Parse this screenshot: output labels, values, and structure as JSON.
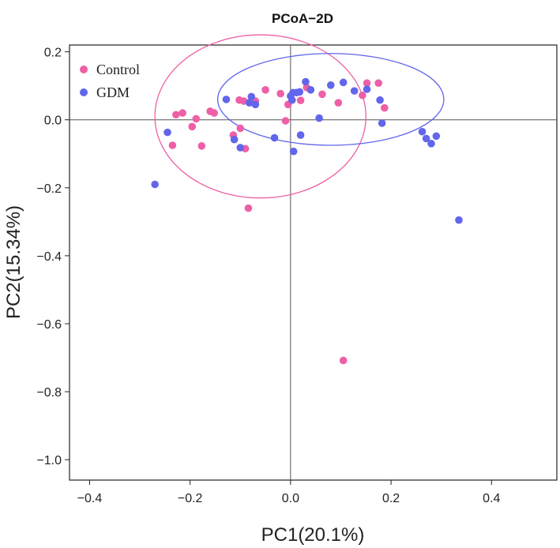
{
  "chart_data": {
    "type": "scatter",
    "title": "PCoA−2D",
    "xlabel": "PC1(20.1%)",
    "ylabel": "PC2(15.34%)",
    "xlim": [
      -0.44,
      0.53
    ],
    "ylim": [
      -1.06,
      0.22
    ],
    "xticks": [
      -0.4,
      -0.2,
      0.0,
      0.2,
      0.4
    ],
    "xtick_labels": [
      "−0.4",
      "−0.2",
      "0.0",
      "0.2",
      "0.4"
    ],
    "yticks": [
      0.2,
      0.0,
      -0.2,
      -0.4,
      -0.6,
      -0.8,
      -1.0
    ],
    "ytick_labels": [
      "0.2",
      "0.0",
      "−0.2",
      "−0.4",
      "−0.6",
      "−0.8",
      "−1.0"
    ],
    "legend_position": "top-left",
    "reference_lines": {
      "x": 0,
      "y": 0
    },
    "series": [
      {
        "name": "Control",
        "color": "#EE5FA7",
        "ellipse": {
          "cx": -0.06,
          "cy": 0.01,
          "rx": 0.21,
          "ry": 0.24
        },
        "points": [
          [
            -0.235,
            -0.075
          ],
          [
            -0.228,
            0.015
          ],
          [
            -0.215,
            0.02
          ],
          [
            -0.196,
            -0.02
          ],
          [
            -0.188,
            0.003
          ],
          [
            -0.177,
            -0.077
          ],
          [
            -0.16,
            0.025
          ],
          [
            -0.152,
            0.02
          ],
          [
            -0.114,
            -0.045
          ],
          [
            -0.102,
            0.058
          ],
          [
            -0.1,
            -0.025
          ],
          [
            -0.093,
            0.055
          ],
          [
            -0.09,
            -0.085
          ],
          [
            -0.084,
            -0.26
          ],
          [
            -0.07,
            0.055
          ],
          [
            -0.05,
            0.088
          ],
          [
            -0.02,
            0.077
          ],
          [
            -0.01,
            -0.003
          ],
          [
            -0.005,
            0.045
          ],
          [
            0.02,
            0.057
          ],
          [
            0.032,
            0.095
          ],
          [
            0.063,
            0.075
          ],
          [
            0.095,
            0.05
          ],
          [
            0.105,
            -0.708
          ],
          [
            0.143,
            0.072
          ],
          [
            0.152,
            0.108
          ],
          [
            0.175,
            0.108
          ],
          [
            0.187,
            0.035
          ]
        ]
      },
      {
        "name": "GDM",
        "color": "#6166EA",
        "ellipse": {
          "cx": 0.08,
          "cy": 0.06,
          "rx": 0.225,
          "ry": 0.135
        },
        "points": [
          [
            -0.27,
            -0.19
          ],
          [
            -0.245,
            -0.037
          ],
          [
            -0.128,
            0.06
          ],
          [
            -0.112,
            -0.058
          ],
          [
            -0.1,
            -0.082
          ],
          [
            -0.082,
            0.05
          ],
          [
            -0.078,
            0.068
          ],
          [
            -0.07,
            0.045
          ],
          [
            -0.032,
            -0.053
          ],
          [
            0.0,
            0.07
          ],
          [
            0.003,
            0.058
          ],
          [
            0.005,
            0.08
          ],
          [
            0.006,
            -0.093
          ],
          [
            0.012,
            0.08
          ],
          [
            0.018,
            0.082
          ],
          [
            0.02,
            -0.045
          ],
          [
            0.03,
            0.112
          ],
          [
            0.04,
            0.088
          ],
          [
            0.057,
            0.005
          ],
          [
            0.08,
            0.102
          ],
          [
            0.105,
            0.11
          ],
          [
            0.127,
            0.085
          ],
          [
            0.152,
            0.09
          ],
          [
            0.178,
            0.058
          ],
          [
            0.182,
            -0.01
          ],
          [
            0.262,
            -0.035
          ],
          [
            0.27,
            -0.055
          ],
          [
            0.28,
            -0.07
          ],
          [
            0.29,
            -0.048
          ],
          [
            0.335,
            -0.295
          ]
        ]
      }
    ]
  }
}
